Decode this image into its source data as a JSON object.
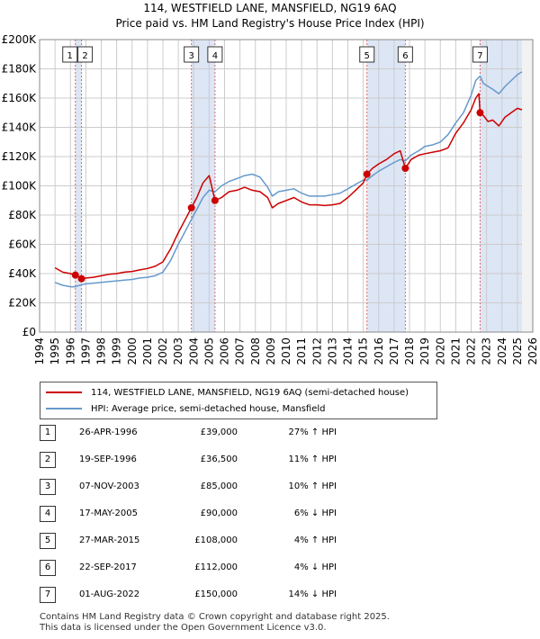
{
  "title_line1": "114, WESTFIELD LANE, MANSFIELD, NG19 6AQ",
  "title_line2": "Price paid vs. HM Land Registry's House Price Index (HPI)",
  "colors": {
    "property": "#cc0000",
    "hpi": "#6699cc",
    "shade": "#dde6f5",
    "grid": "#cccccc",
    "vline": "#e06666"
  },
  "legend": {
    "property_label": "114, WESTFIELD LANE, MANSFIELD, NG19 6AQ (semi-detached house)",
    "hpi_label": "HPI: Average price, semi-detached house, Mansfield"
  },
  "chart_data": {
    "type": "line",
    "title": "Price paid vs. HM Land Registry's House Price Index (HPI)",
    "xlim": [
      1994,
      2026
    ],
    "ylim": [
      0,
      200000
    ],
    "x_ticks": [
      "1994",
      "1995",
      "1996",
      "1997",
      "1998",
      "1999",
      "2000",
      "2001",
      "2002",
      "2003",
      "2004",
      "2005",
      "2006",
      "2007",
      "2008",
      "2009",
      "2010",
      "2011",
      "2012",
      "2013",
      "2014",
      "2015",
      "2016",
      "2017",
      "2018",
      "2019",
      "2020",
      "2021",
      "2022",
      "2023",
      "2024",
      "2025",
      "2026"
    ],
    "y_ticks": [
      {
        "value": 0,
        "label": "£0"
      },
      {
        "value": 20000,
        "label": "£20K"
      },
      {
        "value": 40000,
        "label": "£40K"
      },
      {
        "value": 60000,
        "label": "£60K"
      },
      {
        "value": 80000,
        "label": "£80K"
      },
      {
        "value": 100000,
        "label": "£100K"
      },
      {
        "value": 120000,
        "label": "£120K"
      },
      {
        "value": 140000,
        "label": "£140K"
      },
      {
        "value": 160000,
        "label": "£160K"
      },
      {
        "value": 180000,
        "label": "£180K"
      },
      {
        "value": 200000,
        "label": "£200K"
      }
    ],
    "shaded_ranges": [
      [
        1996.32,
        1996.72
      ],
      [
        2003.85,
        2005.38
      ],
      [
        2015.24,
        2017.73
      ],
      [
        2022.58,
        2025.3
      ]
    ],
    "series": [
      {
        "name": "114, WESTFIELD LANE, MANSFIELD, NG19 6AQ (semi-detached house)",
        "x": [
          1995.0,
          1995.5,
          1996.0,
          1996.32,
          1996.5,
          1996.72,
          1997.0,
          1997.5,
          1998.0,
          1998.5,
          1999.0,
          1999.5,
          2000.0,
          2000.5,
          2001.0,
          2001.5,
          2002.0,
          2002.5,
          2003.0,
          2003.5,
          2003.85,
          2004.2,
          2004.6,
          2005.0,
          2005.38,
          2005.8,
          2006.3,
          2006.8,
          2007.3,
          2007.8,
          2008.3,
          2008.8,
          2009.1,
          2009.5,
          2010.0,
          2010.5,
          2011.0,
          2011.5,
          2012.0,
          2012.5,
          2013.0,
          2013.5,
          2014.0,
          2014.5,
          2015.0,
          2015.24,
          2015.6,
          2016.0,
          2016.5,
          2017.0,
          2017.4,
          2017.73,
          2018.1,
          2018.6,
          2019.0,
          2019.5,
          2020.0,
          2020.5,
          2021.0,
          2021.5,
          2022.0,
          2022.3,
          2022.5,
          2022.58,
          2022.8,
          2023.1,
          2023.4,
          2023.8,
          2024.2,
          2024.6,
          2025.0,
          2025.3
        ],
        "values": [
          44000,
          41000,
          40000,
          39000,
          38000,
          36500,
          37000,
          37500,
          38500,
          39500,
          40000,
          41000,
          41500,
          42500,
          43500,
          45000,
          48000,
          57000,
          68000,
          78000,
          85000,
          92000,
          102000,
          107000,
          90000,
          92000,
          96000,
          97000,
          99000,
          97000,
          96000,
          92000,
          85000,
          88000,
          90000,
          92000,
          89000,
          87000,
          87000,
          86500,
          87000,
          88000,
          92000,
          97000,
          102000,
          108000,
          112000,
          115000,
          118000,
          122000,
          124000,
          112000,
          118000,
          121000,
          122000,
          123000,
          124000,
          126000,
          136000,
          143000,
          152000,
          160000,
          163000,
          150000,
          148000,
          144000,
          145000,
          141000,
          147000,
          150000,
          153000,
          152000
        ]
      },
      {
        "name": "HPI: Average price, semi-detached house, Mansfield",
        "x": [
          1995.0,
          1995.5,
          1996.0,
          1996.32,
          1996.72,
          1997.0,
          1997.5,
          1998.0,
          1998.5,
          1999.0,
          1999.5,
          2000.0,
          2000.5,
          2001.0,
          2001.5,
          2002.0,
          2002.5,
          2003.0,
          2003.5,
          2003.85,
          2004.2,
          2004.6,
          2005.0,
          2005.38,
          2005.8,
          2006.3,
          2006.8,
          2007.3,
          2007.8,
          2008.3,
          2008.8,
          2009.1,
          2009.5,
          2010.0,
          2010.5,
          2011.0,
          2011.5,
          2012.0,
          2012.5,
          2013.0,
          2013.5,
          2014.0,
          2014.5,
          2015.0,
          2015.24,
          2015.6,
          2016.0,
          2016.5,
          2017.0,
          2017.4,
          2017.73,
          2018.1,
          2018.6,
          2019.0,
          2019.5,
          2020.0,
          2020.5,
          2021.0,
          2021.5,
          2022.0,
          2022.3,
          2022.58,
          2022.8,
          2023.1,
          2023.4,
          2023.8,
          2024.2,
          2024.6,
          2025.0,
          2025.3
        ],
        "values": [
          34000,
          32000,
          31000,
          31000,
          32500,
          33000,
          33500,
          34000,
          34500,
          35000,
          35500,
          36000,
          37000,
          37500,
          38500,
          41000,
          49000,
          60000,
          70000,
          77000,
          84000,
          92000,
          97000,
          96000,
          100000,
          103000,
          105000,
          107000,
          108000,
          106000,
          99000,
          93000,
          96000,
          97000,
          98000,
          95000,
          93000,
          93000,
          93000,
          94000,
          95000,
          98000,
          101000,
          104000,
          104000,
          107000,
          110000,
          113000,
          116000,
          118000,
          117000,
          121000,
          124000,
          127000,
          128000,
          130000,
          135000,
          143000,
          150000,
          162000,
          172000,
          175000,
          170000,
          168000,
          166000,
          163000,
          168000,
          172000,
          176000,
          178000
        ]
      }
    ],
    "sales": [
      {
        "num": "1",
        "x": 1996.32,
        "value": 39000
      },
      {
        "num": "2",
        "x": 1996.72,
        "value": 36500
      },
      {
        "num": "3",
        "x": 2003.85,
        "value": 85000
      },
      {
        "num": "4",
        "x": 2005.38,
        "value": 90000
      },
      {
        "num": "5",
        "x": 2015.24,
        "value": 108000
      },
      {
        "num": "6",
        "x": 2017.73,
        "value": 112000
      },
      {
        "num": "7",
        "x": 2022.58,
        "value": 150000
      }
    ]
  },
  "table": [
    {
      "num": "1",
      "date": "26-APR-1996",
      "price": "£39,000",
      "hpi": "27% ↑ HPI"
    },
    {
      "num": "2",
      "date": "19-SEP-1996",
      "price": "£36,500",
      "hpi": "11% ↑ HPI"
    },
    {
      "num": "3",
      "date": "07-NOV-2003",
      "price": "£85,000",
      "hpi": "10% ↑ HPI"
    },
    {
      "num": "4",
      "date": "17-MAY-2005",
      "price": "£90,000",
      "hpi": "6% ↓ HPI"
    },
    {
      "num": "5",
      "date": "27-MAR-2015",
      "price": "£108,000",
      "hpi": "4% ↑ HPI"
    },
    {
      "num": "6",
      "date": "22-SEP-2017",
      "price": "£112,000",
      "hpi": "4% ↓ HPI"
    },
    {
      "num": "7",
      "date": "01-AUG-2022",
      "price": "£150,000",
      "hpi": "14% ↓ HPI"
    }
  ],
  "footer_line1": "Contains HM Land Registry data © Crown copyright and database right 2025.",
  "footer_line2": "This data is licensed under the Open Government Licence v3.0."
}
